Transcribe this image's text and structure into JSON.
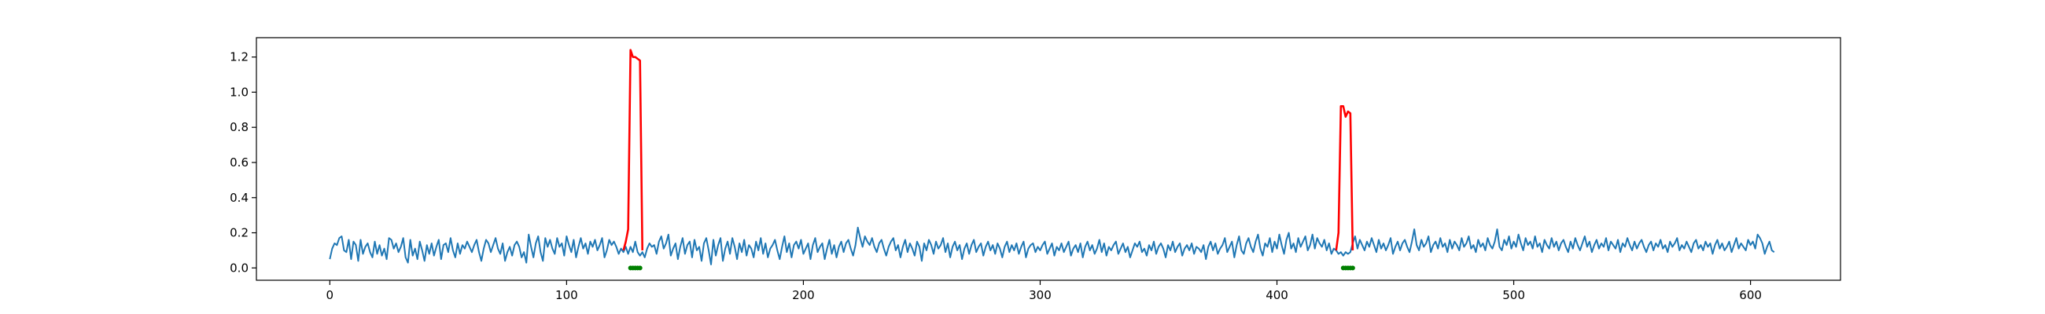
{
  "chart_data": {
    "type": "line",
    "title": "",
    "xlabel": "",
    "ylabel": "",
    "xlim": [
      -31,
      638
    ],
    "ylim": [
      -0.07,
      1.31
    ],
    "xticks": [
      0,
      100,
      200,
      300,
      400,
      500,
      600
    ],
    "yticks": [
      0.0,
      0.2,
      0.4,
      0.6,
      0.8,
      1.0,
      1.2
    ],
    "xtick_labels": [
      "0",
      "100",
      "200",
      "300",
      "400",
      "500",
      "600"
    ],
    "ytick_labels": [
      "0.0",
      "0.2",
      "0.4",
      "0.6",
      "0.8",
      "1.0",
      "1.2"
    ],
    "grid": false,
    "legend": "none",
    "series": [
      {
        "role": "signal",
        "color": "#1f77b4",
        "x_start": 0,
        "x_step": 1,
        "values": [
          0.05,
          0.11,
          0.14,
          0.13,
          0.17,
          0.18,
          0.1,
          0.09,
          0.16,
          0.05,
          0.15,
          0.13,
          0.04,
          0.16,
          0.08,
          0.12,
          0.14,
          0.09,
          0.06,
          0.15,
          0.08,
          0.13,
          0.07,
          0.11,
          0.05,
          0.17,
          0.16,
          0.11,
          0.14,
          0.09,
          0.12,
          0.17,
          0.06,
          0.03,
          0.16,
          0.07,
          0.11,
          0.05,
          0.15,
          0.1,
          0.04,
          0.13,
          0.08,
          0.14,
          0.07,
          0.12,
          0.16,
          0.05,
          0.13,
          0.14,
          0.09,
          0.17,
          0.1,
          0.06,
          0.14,
          0.08,
          0.13,
          0.11,
          0.15,
          0.12,
          0.09,
          0.13,
          0.16,
          0.09,
          0.04,
          0.11,
          0.16,
          0.14,
          0.09,
          0.13,
          0.17,
          0.11,
          0.08,
          0.14,
          0.04,
          0.09,
          0.12,
          0.07,
          0.13,
          0.15,
          0.12,
          0.06,
          0.09,
          0.03,
          0.19,
          0.12,
          0.06,
          0.14,
          0.18,
          0.09,
          0.04,
          0.17,
          0.12,
          0.16,
          0.11,
          0.08,
          0.17,
          0.12,
          0.14,
          0.07,
          0.18,
          0.13,
          0.09,
          0.16,
          0.06,
          0.12,
          0.17,
          0.11,
          0.14,
          0.08,
          0.15,
          0.12,
          0.16,
          0.1,
          0.13,
          0.17,
          0.06,
          0.1,
          0.16,
          0.13,
          0.15,
          0.12,
          0.08,
          0.11,
          0.09,
          0.12,
          0.08,
          0.12,
          0.09,
          0.15,
          0.09,
          0.07,
          0.09,
          0.06,
          0.11,
          0.14,
          0.12,
          0.13,
          0.08,
          0.15,
          0.18,
          0.11,
          0.14,
          0.19,
          0.07,
          0.11,
          0.14,
          0.05,
          0.12,
          0.17,
          0.08,
          0.13,
          0.15,
          0.06,
          0.16,
          0.1,
          0.12,
          0.04,
          0.14,
          0.17,
          0.1,
          0.02,
          0.16,
          0.07,
          0.13,
          0.17,
          0.04,
          0.11,
          0.15,
          0.08,
          0.17,
          0.12,
          0.05,
          0.14,
          0.09,
          0.16,
          0.07,
          0.13,
          0.11,
          0.06,
          0.15,
          0.1,
          0.17,
          0.08,
          0.14,
          0.06,
          0.11,
          0.13,
          0.16,
          0.1,
          0.05,
          0.12,
          0.18,
          0.09,
          0.14,
          0.06,
          0.13,
          0.15,
          0.11,
          0.16,
          0.08,
          0.11,
          0.14,
          0.05,
          0.13,
          0.17,
          0.09,
          0.12,
          0.14,
          0.05,
          0.11,
          0.16,
          0.08,
          0.13,
          0.06,
          0.12,
          0.15,
          0.09,
          0.14,
          0.16,
          0.11,
          0.07,
          0.13,
          0.23,
          0.17,
          0.12,
          0.18,
          0.15,
          0.13,
          0.17,
          0.12,
          0.09,
          0.14,
          0.16,
          0.11,
          0.07,
          0.12,
          0.15,
          0.17,
          0.1,
          0.13,
          0.06,
          0.12,
          0.16,
          0.09,
          0.14,
          0.11,
          0.07,
          0.15,
          0.12,
          0.04,
          0.14,
          0.1,
          0.16,
          0.13,
          0.08,
          0.15,
          0.11,
          0.13,
          0.17,
          0.09,
          0.14,
          0.06,
          0.12,
          0.15,
          0.1,
          0.13,
          0.05,
          0.11,
          0.14,
          0.08,
          0.13,
          0.16,
          0.09,
          0.12,
          0.14,
          0.07,
          0.12,
          0.15,
          0.1,
          0.13,
          0.08,
          0.14,
          0.11,
          0.06,
          0.12,
          0.15,
          0.09,
          0.13,
          0.1,
          0.14,
          0.08,
          0.12,
          0.15,
          0.06,
          0.11,
          0.13,
          0.14,
          0.09,
          0.12,
          0.1,
          0.13,
          0.15,
          0.08,
          0.11,
          0.14,
          0.07,
          0.12,
          0.1,
          0.14,
          0.09,
          0.12,
          0.15,
          0.07,
          0.11,
          0.13,
          0.09,
          0.14,
          0.06,
          0.12,
          0.15,
          0.1,
          0.13,
          0.08,
          0.11,
          0.16,
          0.09,
          0.14,
          0.07,
          0.12,
          0.1,
          0.13,
          0.15,
          0.08,
          0.11,
          0.14,
          0.09,
          0.12,
          0.06,
          0.1,
          0.14,
          0.12,
          0.15,
          0.09,
          0.11,
          0.07,
          0.13,
          0.1,
          0.15,
          0.08,
          0.12,
          0.14,
          0.11,
          0.06,
          0.13,
          0.1,
          0.15,
          0.09,
          0.12,
          0.14,
          0.07,
          0.11,
          0.13,
          0.1,
          0.14,
          0.08,
          0.12,
          0.11,
          0.09,
          0.13,
          0.05,
          0.12,
          0.15,
          0.1,
          0.14,
          0.08,
          0.11,
          0.13,
          0.17,
          0.09,
          0.12,
          0.15,
          0.06,
          0.13,
          0.18,
          0.1,
          0.08,
          0.14,
          0.17,
          0.12,
          0.09,
          0.15,
          0.19,
          0.11,
          0.07,
          0.14,
          0.12,
          0.17,
          0.09,
          0.15,
          0.11,
          0.19,
          0.13,
          0.08,
          0.16,
          0.2,
          0.11,
          0.14,
          0.09,
          0.17,
          0.12,
          0.15,
          0.18,
          0.1,
          0.13,
          0.19,
          0.11,
          0.17,
          0.14,
          0.12,
          0.16,
          0.1,
          0.14,
          0.08,
          0.11,
          0.1,
          0.08,
          0.09,
          0.07,
          0.09,
          0.08,
          0.09,
          0.14,
          0.18,
          0.11,
          0.16,
          0.13,
          0.1,
          0.15,
          0.12,
          0.17,
          0.13,
          0.09,
          0.16,
          0.11,
          0.14,
          0.1,
          0.13,
          0.17,
          0.08,
          0.12,
          0.15,
          0.1,
          0.14,
          0.16,
          0.12,
          0.09,
          0.15,
          0.22,
          0.13,
          0.1,
          0.16,
          0.12,
          0.14,
          0.18,
          0.09,
          0.13,
          0.15,
          0.11,
          0.17,
          0.12,
          0.14,
          0.09,
          0.16,
          0.11,
          0.15,
          0.13,
          0.1,
          0.17,
          0.12,
          0.14,
          0.18,
          0.11,
          0.13,
          0.09,
          0.16,
          0.12,
          0.14,
          0.1,
          0.17,
          0.13,
          0.11,
          0.15,
          0.22,
          0.12,
          0.1,
          0.16,
          0.13,
          0.18,
          0.11,
          0.15,
          0.12,
          0.19,
          0.14,
          0.1,
          0.17,
          0.13,
          0.15,
          0.11,
          0.18,
          0.12,
          0.14,
          0.09,
          0.16,
          0.13,
          0.11,
          0.17,
          0.12,
          0.15,
          0.1,
          0.14,
          0.16,
          0.12,
          0.09,
          0.15,
          0.11,
          0.17,
          0.13,
          0.1,
          0.14,
          0.18,
          0.12,
          0.15,
          0.09,
          0.13,
          0.16,
          0.11,
          0.14,
          0.12,
          0.17,
          0.1,
          0.15,
          0.13,
          0.11,
          0.16,
          0.09,
          0.14,
          0.12,
          0.17,
          0.13,
          0.1,
          0.15,
          0.11,
          0.14,
          0.16,
          0.12,
          0.09,
          0.13,
          0.15,
          0.1,
          0.14,
          0.12,
          0.16,
          0.11,
          0.13,
          0.09,
          0.15,
          0.12,
          0.14,
          0.17,
          0.1,
          0.13,
          0.11,
          0.15,
          0.12,
          0.09,
          0.14,
          0.16,
          0.11,
          0.13,
          0.1,
          0.15,
          0.12,
          0.14,
          0.08,
          0.13,
          0.16,
          0.11,
          0.14,
          0.1,
          0.12,
          0.15,
          0.09,
          0.13,
          0.17,
          0.11,
          0.14,
          0.12,
          0.1,
          0.16,
          0.13,
          0.15,
          0.11,
          0.19,
          0.17,
          0.14,
          0.08,
          0.12,
          0.15,
          0.1,
          0.09
        ]
      },
      {
        "role": "detected-anomaly",
        "color": "#ff0000",
        "x": [
          124,
          125,
          126,
          127,
          128,
          129,
          130,
          131,
          132
        ],
        "values": [
          0.1,
          0.15,
          0.22,
          1.24,
          1.2,
          1.2,
          1.19,
          1.18,
          0.1
        ]
      },
      {
        "role": "detected-anomaly",
        "color": "#ff0000",
        "x": [
          425,
          426,
          427,
          428,
          429,
          430,
          431,
          432
        ],
        "values": [
          0.1,
          0.2,
          0.92,
          0.92,
          0.86,
          0.89,
          0.88,
          0.1
        ]
      }
    ],
    "markers": {
      "color": "#008000",
      "y": 0.0,
      "x": [
        127,
        128,
        129,
        130,
        131,
        428,
        429,
        430,
        431,
        432
      ]
    }
  }
}
